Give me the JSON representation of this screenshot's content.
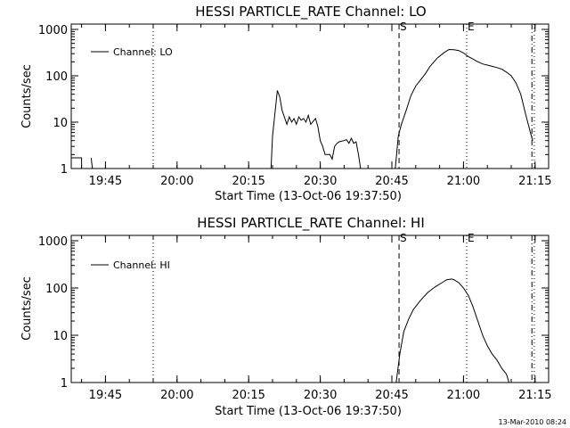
{
  "footer": "13-Mar-2010 08:24",
  "chart_data": [
    {
      "type": "line",
      "title": "HESSI PARTICLE_RATE Channel: LO",
      "xlabel": "Start Time (13-Oct-06 19:37:50)",
      "ylabel": "Counts/sec",
      "yscale": "log",
      "ylim": [
        1,
        1000
      ],
      "yticks": [
        1,
        10,
        100,
        1000
      ],
      "yticklabels": [
        "1",
        "10",
        "100",
        "1000"
      ],
      "xlim": [
        "19:37:50",
        "21:17:50"
      ],
      "xticks": [
        "19:45",
        "20:00",
        "20:15",
        "20:30",
        "20:45",
        "21:00",
        "21:15"
      ],
      "legend": {
        "position": "top-left",
        "entries": [
          "Channel: LO"
        ]
      },
      "markers": [
        {
          "time": "19:55:00",
          "style": "dotted",
          "label": ""
        },
        {
          "time": "20:46:30",
          "style": "dashed",
          "label": "S"
        },
        {
          "time": "21:00:40",
          "style": "dotted",
          "label": "E"
        },
        {
          "time": "21:14:20",
          "style": "dash-dot",
          "label": ""
        },
        {
          "time": "21:14:50",
          "style": "dotted",
          "label": ""
        }
      ],
      "series": [
        {
          "name": "Channel: LO",
          "segments": [
            {
              "x": [
                "19:37:50",
                "19:40:00",
                "19:40:00"
              ],
              "y": [
                1.7,
                1.7,
                0.9
              ]
            },
            {
              "x": [
                "19:42:00",
                "19:42:20"
              ],
              "y": [
                1.7,
                0.9
              ]
            },
            {
              "x": [
                "20:19:40",
                "20:20:00",
                "20:21:00",
                "20:21:30",
                "20:22:00",
                "20:23:00",
                "20:23:30",
                "20:24:00",
                "20:24:30",
                "20:25:00",
                "20:25:30",
                "20:26:00",
                "20:26:30",
                "20:27:00",
                "20:27:30",
                "20:28:00",
                "20:29:00",
                "20:29:30",
                "20:30:00",
                "20:30:30",
                "20:31:00",
                "20:32:00",
                "20:32:30",
                "20:33:00",
                "20:33:30",
                "20:34:00",
                "20:35:00",
                "20:35:30",
                "20:36:00",
                "20:36:30",
                "20:37:00",
                "20:37:30",
                "20:38:00",
                "20:38:30"
              ],
              "y": [
                0.9,
                5,
                48,
                35,
                18,
                9,
                13,
                10,
                12,
                9,
                13,
                11,
                12,
                10,
                14,
                9,
                12,
                8,
                4,
                3,
                2,
                2,
                1.6,
                3,
                3.5,
                3.8,
                4,
                4.2,
                3.5,
                4.5,
                3.5,
                3.8,
                2,
                0.9
              ]
            },
            {
              "x": [
                "20:45:40",
                "20:46:20",
                "20:47:00",
                "20:48:00",
                "20:49:00",
                "20:50:00",
                "20:52:00",
                "20:53:00",
                "20:54:30",
                "20:56:00",
                "20:57:00",
                "20:58:00",
                "20:59:00",
                "21:00:00",
                "21:01:00",
                "21:02:00",
                "21:03:00",
                "21:04:00",
                "21:05:00",
                "21:06:00",
                "21:07:00",
                "21:08:00",
                "21:09:00",
                "21:10:00",
                "21:11:00",
                "21:12:00",
                "21:13:00",
                "21:14:00",
                "21:14:30"
              ],
              "y": [
                0.9,
                5,
                9,
                18,
                38,
                60,
                110,
                160,
                240,
                320,
                370,
                365,
                350,
                310,
                260,
                230,
                200,
                180,
                170,
                160,
                150,
                140,
                120,
                100,
                70,
                40,
                15,
                6,
                4
              ]
            }
          ]
        }
      ]
    },
    {
      "type": "line",
      "title": "HESSI PARTICLE_RATE Channel: HI",
      "xlabel": "Start Time (13-Oct-06 19:37:50)",
      "ylabel": "Counts/sec",
      "yscale": "log",
      "ylim": [
        1,
        1000
      ],
      "yticks": [
        1,
        10,
        100,
        1000
      ],
      "yticklabels": [
        "1",
        "10",
        "100",
        "1000"
      ],
      "xlim": [
        "19:37:50",
        "21:17:50"
      ],
      "xticks": [
        "19:45",
        "20:00",
        "20:15",
        "20:30",
        "20:45",
        "21:00",
        "21:15"
      ],
      "legend": {
        "position": "top-left",
        "entries": [
          "Channel: HI"
        ]
      },
      "markers": [
        {
          "time": "19:55:00",
          "style": "dotted",
          "label": ""
        },
        {
          "time": "20:46:30",
          "style": "dashed",
          "label": "S"
        },
        {
          "time": "21:00:40",
          "style": "dotted",
          "label": "E"
        },
        {
          "time": "21:14:20",
          "style": "dash-dot",
          "label": ""
        },
        {
          "time": "21:14:50",
          "style": "dotted",
          "label": ""
        }
      ],
      "series": [
        {
          "name": "Channel: HI",
          "segments": [
            {
              "x": [
                "20:45:50",
                "20:46:40",
                "20:47:30",
                "20:48:30",
                "20:49:30",
                "20:51:00",
                "20:52:30",
                "20:54:00",
                "20:55:30",
                "20:56:30",
                "20:57:30",
                "20:58:00",
                "20:59:00",
                "21:00:00",
                "21:01:00",
                "21:02:00",
                "21:03:00",
                "21:04:00",
                "21:05:00",
                "21:06:00",
                "21:07:00",
                "21:08:00",
                "21:09:00",
                "21:09:40"
              ],
              "y": [
                0.9,
                4,
                12,
                22,
                35,
                55,
                80,
                105,
                130,
                150,
                155,
                150,
                130,
                100,
                70,
                40,
                20,
                10,
                6,
                4,
                3,
                2,
                1.5,
                0.9
              ]
            }
          ]
        }
      ]
    }
  ]
}
